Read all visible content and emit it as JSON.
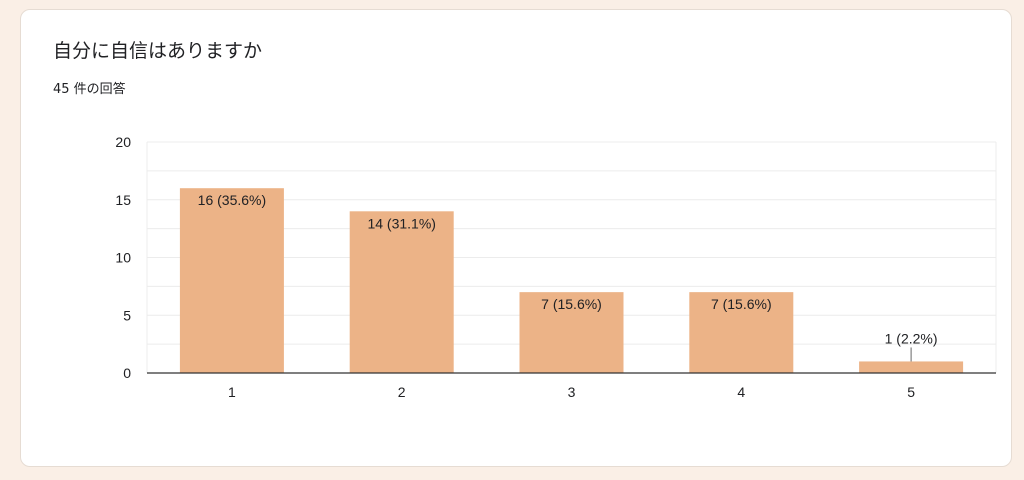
{
  "card": {
    "title": "自分に自信はありますか",
    "response_count": "45 件の回答"
  },
  "chart_data": {
    "type": "bar",
    "categories": [
      "1",
      "2",
      "3",
      "4",
      "5"
    ],
    "values": [
      16,
      14,
      7,
      7,
      1
    ],
    "data_labels": [
      "16 (35.6%)",
      "14 (31.1%)",
      "7 (15.6%)",
      "7 (15.6%)",
      "1 (2.2%)"
    ],
    "ylim": [
      0,
      20
    ],
    "yticks": [
      0,
      5,
      10,
      15,
      20
    ],
    "grid": true,
    "legend": "none",
    "colors": {
      "bar": "#ecb387",
      "grid": "#ececec",
      "axis": "#333333",
      "label": "#202124"
    }
  }
}
